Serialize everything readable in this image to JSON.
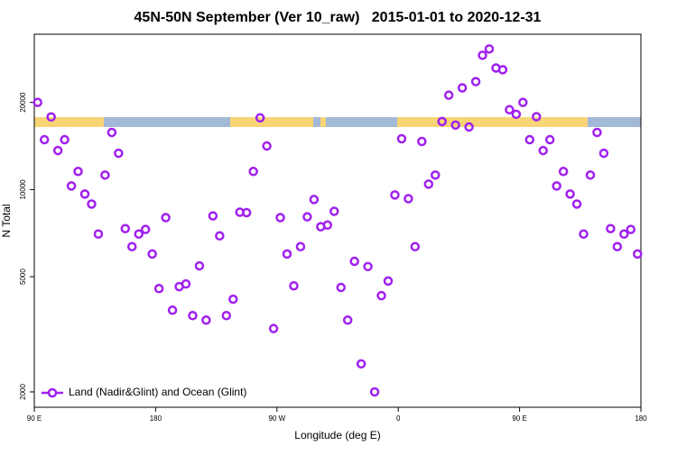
{
  "chart_data": {
    "type": "scatter",
    "title": "45N-50N September (Ver 10_raw)   2015-01-01 to 2020-12-31",
    "xlabel": "Longitude (deg E)",
    "ylabel": "N Total",
    "x": [
      92.5,
      97.5,
      102.5,
      107.5,
      112.5,
      117.5,
      122.5,
      127.5,
      132.5,
      137.5,
      142.5,
      147.5,
      152.5,
      157.5,
      162.5,
      167.5,
      172.5,
      177.5,
      182.5,
      187.5,
      192.5,
      197.5,
      202.5,
      207.5,
      212.5,
      217.5,
      222.5,
      227.5,
      232.5,
      237.5,
      242.5,
      247.5,
      252.5,
      257.5,
      262.5,
      267.5,
      272.5,
      277.5,
      282.5,
      287.5,
      292.5,
      297.5,
      302.5,
      307.5,
      312.5,
      317.5,
      322.5,
      327.5,
      332.5,
      337.5,
      342.5,
      347.5,
      352.5,
      357.5,
      362.5,
      367.5,
      372.5,
      377.5,
      382.5,
      387.5,
      392.5,
      397.5,
      402.5,
      407.5,
      412.5,
      417.5,
      422.5,
      427.5,
      432.5,
      437.5,
      442.5,
      447.5,
      452.5,
      457.5,
      462.5,
      467.5,
      472.5,
      477.5,
      482.5,
      487.5,
      492.5,
      497.5,
      502.5,
      507.5,
      512.5,
      517.5,
      522.5,
      527.5,
      532.5,
      537.5
    ],
    "series": [
      {
        "name": "Land (Nadir&Glint) and Ocean (Glint)",
        "color": "#a020f0",
        "values": [
          20000,
          14870,
          17820,
          13640,
          14870,
          10290,
          11550,
          9650,
          8910,
          7020,
          11220,
          15750,
          13350,
          7330,
          6350,
          7020,
          7280,
          5990,
          4550,
          8000,
          3830,
          4620,
          4720,
          3670,
          5450,
          3540,
          8110,
          6920,
          3670,
          4180,
          8350,
          8320,
          11550,
          17690,
          14140,
          3310,
          8000,
          5990,
          4650,
          6350,
          8050,
          9240,
          7440,
          7540,
          8410,
          4590,
          3540,
          5650,
          2500,
          5420,
          2000,
          4300,
          4830,
          9580,
          14980,
          9300,
          6350,
          14660,
          10440,
          11220,
          17180,
          21190,
          16700,
          22450,
          16450,
          23600,
          29100,
          30600,
          26300,
          25940,
          18870,
          18200,
          20000,
          14870,
          17850,
          13640,
          14870,
          10290,
          11550,
          9650,
          8910,
          7020,
          11220,
          15750,
          13350,
          7330,
          6350,
          7020,
          7280,
          5990
        ]
      }
    ],
    "xlim": [
      90,
      540
    ],
    "xticks": [
      {
        "value": 90,
        "label": "90 E"
      },
      180,
      {
        "value": 270,
        "label": "90 W"
      },
      {
        "value": 360,
        "label": "0"
      },
      {
        "value": 450,
        "label": "90 E"
      },
      {
        "value": 540,
        "label": "180"
      }
    ],
    "ylim": [
      1770,
      34400
    ],
    "yticks": [
      2000,
      5000,
      10000,
      20000
    ],
    "log_y": true,
    "legend": "lower left"
  }
}
